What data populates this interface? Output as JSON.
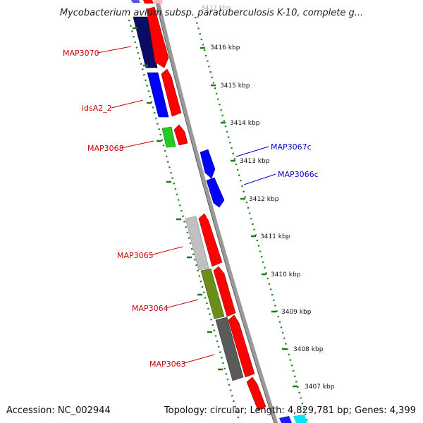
{
  "title": "Mycobacterium avium subsp. paratuberculosis K-10, complete g...",
  "footer": {
    "accession": "Accession: NC_002944",
    "summary": "Topology: circular; Length: 4,829,781 bp; Genes: 4,399"
  },
  "colors": {
    "forward_cds": "#ff0000",
    "reverse_cds": "#0000ff",
    "backbone": "#8c8c8c",
    "tick": "#1a7a1a",
    "label_forward": "#cc0000",
    "label_reverse": "#0000cc"
  },
  "ticks": [
    "3417 kbp",
    "3416 kbp",
    "3415 kbp",
    "3414 kbp",
    "3413 kbp",
    "3412 kbp",
    "3411 kbp",
    "3410 kbp",
    "3409 kbp",
    "3408 kbp",
    "3407 kbp"
  ],
  "gene_labels": [
    {
      "text": "MAP3070",
      "side": "left"
    },
    {
      "text": "idsA2_2",
      "side": "left"
    },
    {
      "text": "MAP3068",
      "side": "left"
    },
    {
      "text": "MAP3067c",
      "side": "right"
    },
    {
      "text": "MAP3066c",
      "side": "right"
    },
    {
      "text": "MAP3065",
      "side": "left"
    },
    {
      "text": "MAP3064",
      "side": "left"
    },
    {
      "text": "MAP3063",
      "side": "left"
    }
  ],
  "features": [
    {
      "name": "feature-top-blue",
      "strand": "inner-left",
      "color": "#3333cc"
    },
    {
      "name": "feature-map3070-dark",
      "strand": "inner-left",
      "color": "#0c0c66"
    },
    {
      "name": "feature-ids-blue",
      "strand": "inner-left",
      "color": "#0000ff"
    },
    {
      "name": "feature-map3068-green",
      "strand": "inner-left",
      "color": "#22cc22"
    },
    {
      "name": "feature-map3065-gray",
      "strand": "inner-left",
      "color": "#bbbbbb"
    },
    {
      "name": "feature-map3064-olive",
      "strand": "inner-left",
      "color": "#6b8e1a"
    },
    {
      "name": "feature-map3063-darkgray",
      "strand": "inner-left",
      "color": "#5a5a5a"
    },
    {
      "name": "feature-bottom-cyan",
      "strand": "inner-left",
      "color": "#00ffff"
    },
    {
      "name": "feature-bottom-blue",
      "strand": "inner-left",
      "color": "#1a1aff"
    }
  ]
}
